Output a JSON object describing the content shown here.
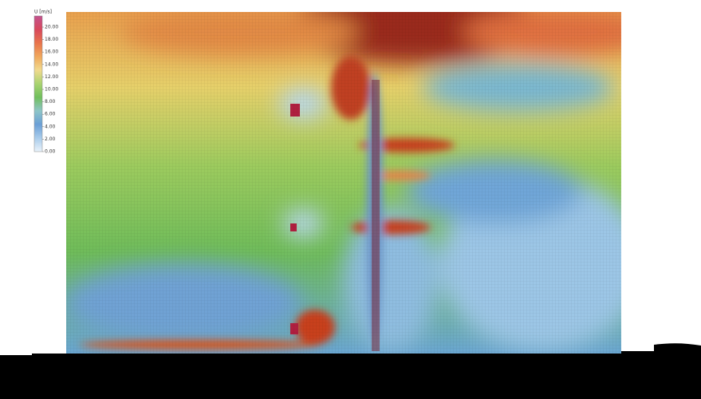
{
  "legend": {
    "title": "U [m/s]",
    "labels": [
      "20.00",
      "18.00",
      "16.00",
      "14.00",
      "12.00",
      "10.00",
      "8.00",
      "6.00",
      "4.00",
      "2.00",
      "0.00"
    ],
    "colors": [
      "#c2538e",
      "#d8485c",
      "#e8744c",
      "#f0a85c",
      "#f1da8e",
      "#a9d370",
      "#70bf5c",
      "#8ec5c8",
      "#6a9fd6",
      "#a9cceb",
      "#eaf3fb"
    ]
  }
}
